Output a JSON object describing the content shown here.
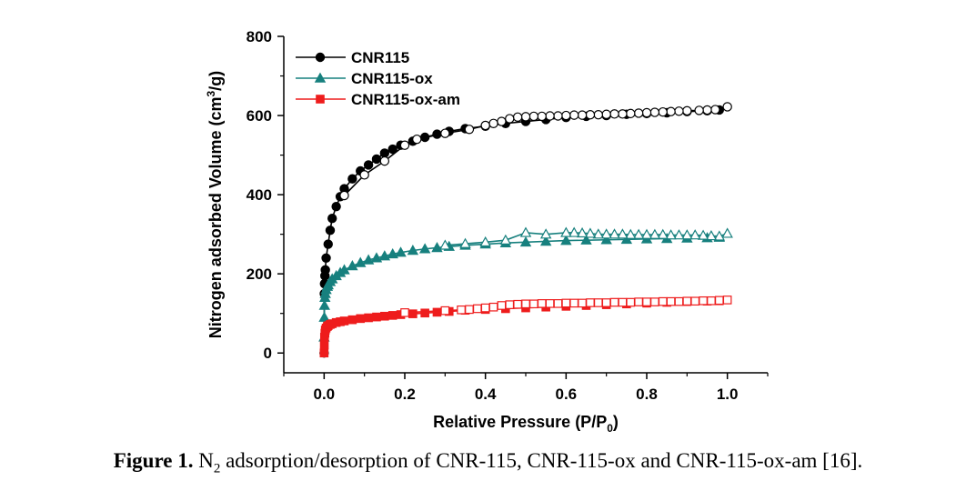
{
  "caption": {
    "label": "Figure 1.",
    "text_pre": " N",
    "text_sub": "2",
    "text_post": " adsorption/desorption of CNR-115, CNR-115-ox and CNR-115-ox-am [16]."
  },
  "chart_data": {
    "type": "scatter",
    "title": "",
    "xlabel_main": "Relative Pressure (P/P",
    "xlabel_sub": "0",
    "xlabel_end": ")",
    "ylabel_main": "Nitrogen adsorbed Volume (cm",
    "ylabel_sup": "3",
    "ylabel_end": "/g)",
    "xlim": [
      -0.1,
      1.1
    ],
    "ylim": [
      -50,
      800
    ],
    "x_ticks": [
      0.0,
      0.2,
      0.4,
      0.6,
      0.8,
      1.0
    ],
    "x_tick_labels": [
      "0.0",
      "0.2",
      "0.4",
      "0.6",
      "0.8",
      "1.0"
    ],
    "y_ticks": [
      0,
      200,
      400,
      600,
      800
    ],
    "y_tick_labels": [
      "0",
      "200",
      "400",
      "600",
      "800"
    ],
    "legend_position": "top-left",
    "series": [
      {
        "name": "CNR115",
        "color": "#000000",
        "marker": "circle",
        "adsorption": {
          "x": [
            0.0,
            0.0005,
            0.001,
            0.002,
            0.003,
            0.005,
            0.01,
            0.015,
            0.02,
            0.03,
            0.04,
            0.05,
            0.07,
            0.09,
            0.11,
            0.13,
            0.15,
            0.17,
            0.19,
            0.22,
            0.25,
            0.28,
            0.31,
            0.35,
            0.4,
            0.45,
            0.5,
            0.55,
            0.6,
            0.65,
            0.7,
            0.75,
            0.8,
            0.85,
            0.9,
            0.95,
            0.98
          ],
          "y": [
            0,
            150,
            175,
            195,
            210,
            240,
            275,
            310,
            340,
            370,
            395,
            415,
            440,
            460,
            475,
            490,
            505,
            515,
            525,
            535,
            545,
            553,
            560,
            567,
            573,
            580,
            585,
            590,
            595,
            598,
            600,
            603,
            605,
            607,
            610,
            612,
            614
          ]
        },
        "desorption": {
          "x": [
            1.0,
            0.97,
            0.95,
            0.93,
            0.9,
            0.88,
            0.86,
            0.84,
            0.82,
            0.8,
            0.78,
            0.76,
            0.74,
            0.72,
            0.7,
            0.68,
            0.66,
            0.64,
            0.62,
            0.6,
            0.58,
            0.56,
            0.54,
            0.52,
            0.5,
            0.48,
            0.46,
            0.44,
            0.42,
            0.4,
            0.36,
            0.3,
            0.23,
            0.2,
            0.15,
            0.1,
            0.05
          ],
          "y": [
            622,
            615,
            614,
            613,
            612,
            611,
            610,
            609,
            608,
            607,
            606,
            605,
            604,
            604,
            603,
            602,
            602,
            601,
            601,
            600,
            599,
            599,
            598,
            598,
            597,
            596,
            592,
            585,
            580,
            575,
            565,
            555,
            540,
            525,
            485,
            450,
            398
          ]
        }
      },
      {
        "name": "CNR115-ox",
        "color": "#17807e",
        "marker": "triangle",
        "adsorption": {
          "x": [
            0.0,
            0.0005,
            0.001,
            0.002,
            0.003,
            0.005,
            0.008,
            0.01,
            0.015,
            0.02,
            0.03,
            0.04,
            0.05,
            0.07,
            0.09,
            0.11,
            0.13,
            0.15,
            0.17,
            0.19,
            0.22,
            0.25,
            0.28,
            0.31,
            0.35,
            0.4,
            0.45,
            0.5,
            0.55,
            0.6,
            0.65,
            0.7,
            0.75,
            0.8,
            0.85,
            0.9,
            0.95,
            0.98
          ],
          "y": [
            40,
            90,
            120,
            140,
            150,
            160,
            168,
            172,
            180,
            187,
            195,
            203,
            210,
            220,
            228,
            235,
            240,
            245,
            250,
            254,
            259,
            263,
            266,
            269,
            272,
            275,
            278,
            280,
            282,
            284,
            285,
            286,
            287,
            288,
            289,
            290,
            291,
            292
          ]
        },
        "desorption": {
          "x": [
            1.0,
            0.98,
            0.96,
            0.94,
            0.92,
            0.9,
            0.88,
            0.86,
            0.84,
            0.82,
            0.8,
            0.78,
            0.76,
            0.74,
            0.72,
            0.7,
            0.68,
            0.66,
            0.64,
            0.62,
            0.6,
            0.55,
            0.5,
            0.45,
            0.4,
            0.35,
            0.3
          ],
          "y": [
            302,
            295,
            296,
            297,
            298,
            298,
            298,
            298,
            299,
            299,
            299,
            299,
            299,
            300,
            300,
            300,
            300,
            302,
            303,
            304,
            304,
            300,
            304,
            285,
            280,
            276,
            272
          ]
        }
      },
      {
        "name": "CNR115-ox-am",
        "color": "#ee1c1c",
        "marker": "square",
        "adsorption": {
          "x": [
            0.0,
            0.0005,
            0.001,
            0.002,
            0.003,
            0.005,
            0.008,
            0.01,
            0.015,
            0.02,
            0.03,
            0.04,
            0.05,
            0.07,
            0.09,
            0.11,
            0.13,
            0.15,
            0.17,
            0.19,
            0.22,
            0.25,
            0.28,
            0.31,
            0.35,
            0.4,
            0.45,
            0.5,
            0.55,
            0.6,
            0.65,
            0.7,
            0.75,
            0.8,
            0.85,
            0.9,
            0.95,
            0.98
          ],
          "y": [
            0,
            20,
            40,
            50,
            58,
            63,
            67,
            69,
            72,
            74,
            77,
            79,
            81,
            84,
            87,
            89,
            91,
            93,
            95,
            97,
            99,
            101,
            103,
            105,
            108,
            110,
            112,
            114,
            116,
            118,
            120,
            122,
            124,
            126,
            128,
            130,
            131,
            132
          ]
        },
        "desorption": {
          "x": [
            1.0,
            0.98,
            0.96,
            0.94,
            0.92,
            0.9,
            0.88,
            0.86,
            0.84,
            0.82,
            0.8,
            0.78,
            0.76,
            0.74,
            0.72,
            0.7,
            0.68,
            0.66,
            0.64,
            0.62,
            0.6,
            0.58,
            0.56,
            0.54,
            0.52,
            0.5,
            0.48,
            0.46,
            0.44,
            0.42,
            0.4,
            0.38,
            0.36,
            0.34,
            0.3,
            0.2
          ],
          "y": [
            134,
            133,
            132,
            132,
            131,
            131,
            130,
            130,
            130,
            129,
            129,
            129,
            128,
            128,
            128,
            127,
            127,
            127,
            126,
            126,
            126,
            125,
            125,
            125,
            124,
            124,
            123,
            122,
            120,
            116,
            114,
            112,
            110,
            109,
            107,
            102
          ]
        }
      }
    ]
  }
}
